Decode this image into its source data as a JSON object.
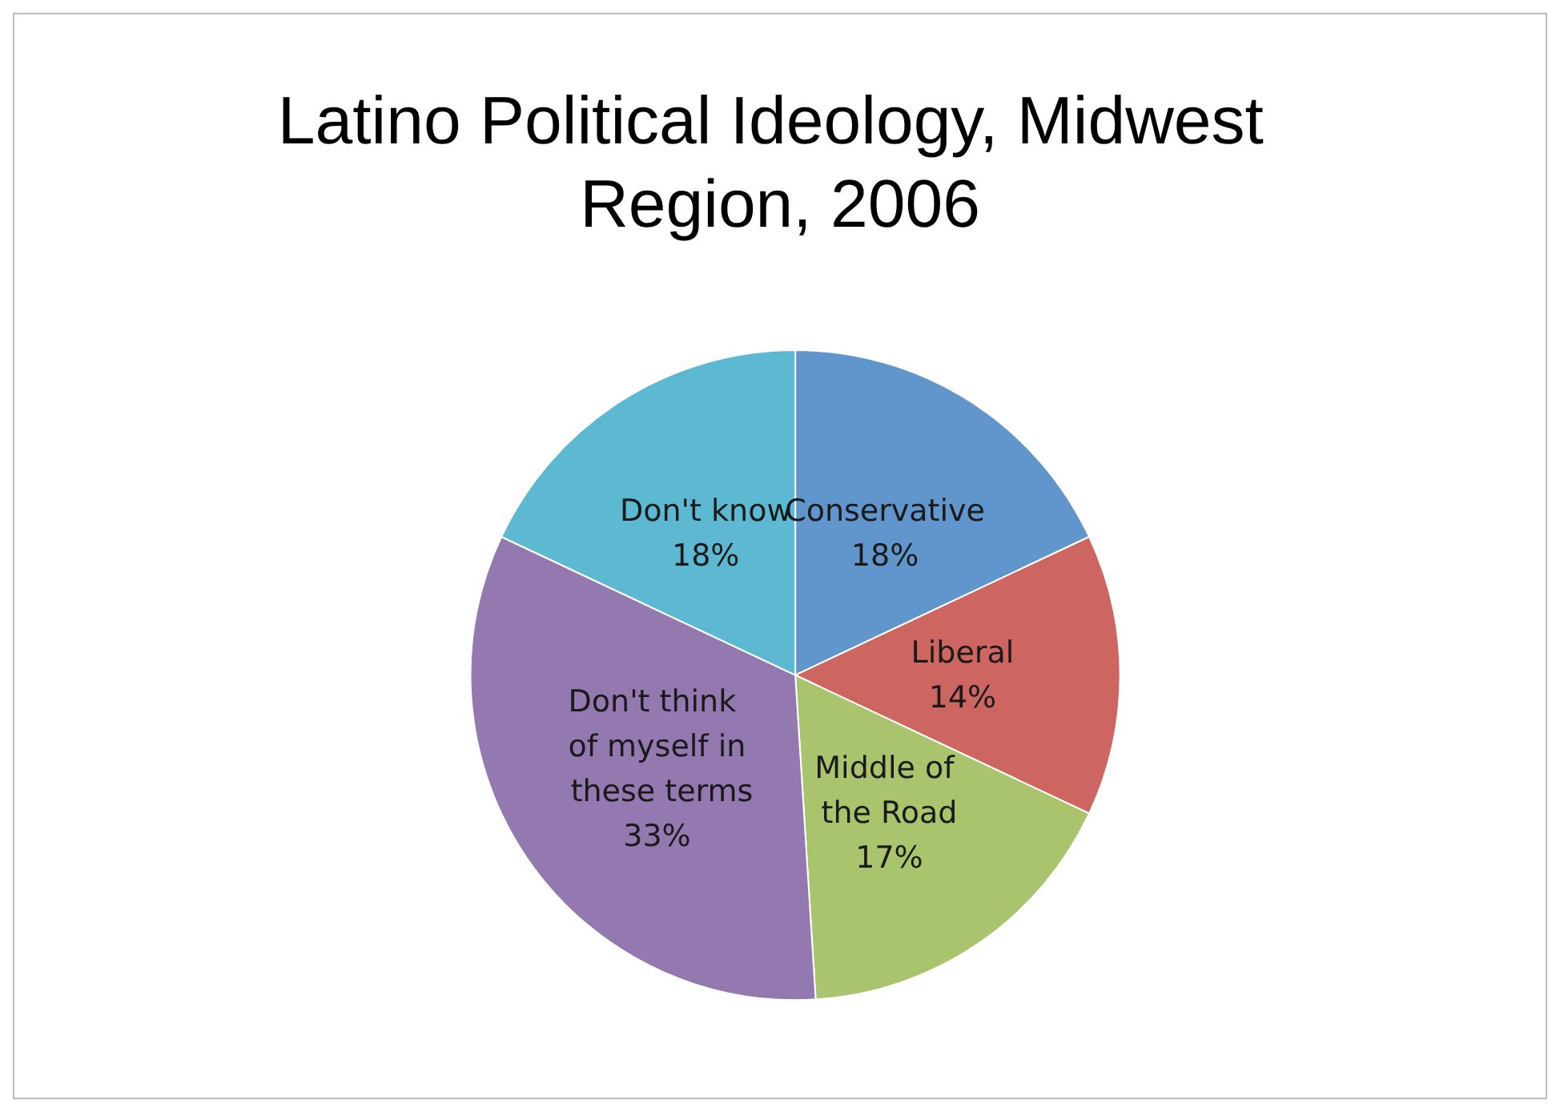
{
  "chart_data": {
    "type": "pie",
    "title": "Latino Political Ideology, Midwest Region, 2006",
    "categories": [
      "Conservative",
      "Liberal",
      "Middle of the Road",
      "Don't think of myself in these terms",
      "Don't know"
    ],
    "values": [
      18,
      14,
      17,
      33,
      18
    ],
    "colors": [
      "#6096cb",
      "#cd6660",
      "#a9c46c",
      "#9479b1",
      "#5cb9d1"
    ],
    "value_labels": [
      "18%",
      "14%",
      "17%",
      "33%",
      "18%"
    ],
    "legend": false
  }
}
